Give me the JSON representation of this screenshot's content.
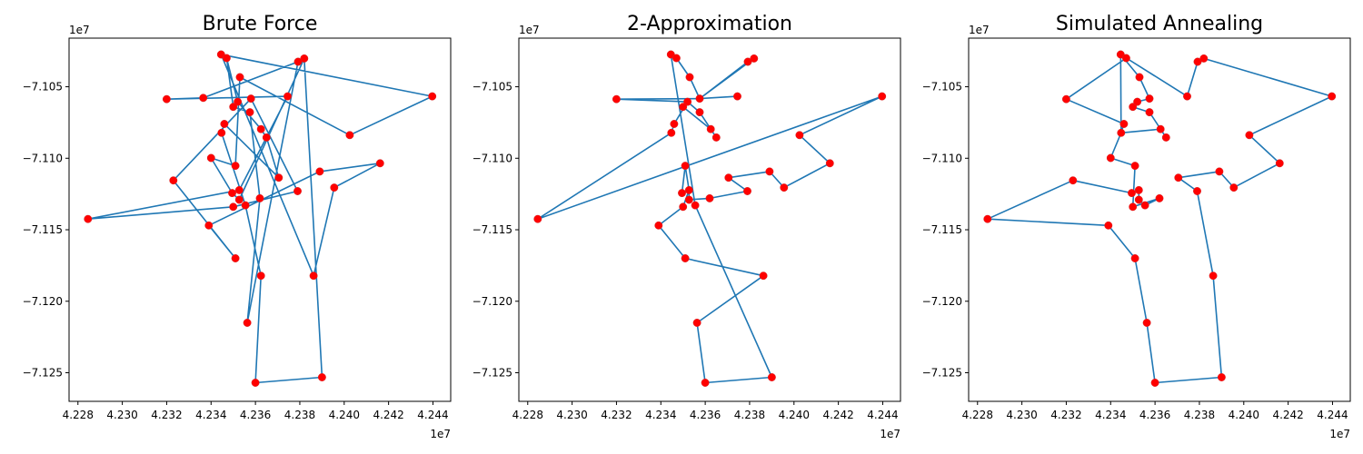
{
  "chart_data": [
    {
      "type": "line",
      "title": "Brute Force",
      "x_offset_label": "1e7",
      "y_offset_label": "1e7",
      "x_tick_labels": [
        "4.228",
        "4.230",
        "4.232",
        "4.234",
        "4.236",
        "4.238",
        "4.240",
        "4.242",
        "4.244"
      ],
      "y_tick_labels": [
        "−7.105",
        "−7.110",
        "−7.115",
        "−7.120",
        "−7.125"
      ],
      "x_ticks": [
        4.228,
        4.23,
        4.232,
        4.234,
        4.236,
        4.238,
        4.24,
        4.242,
        4.244
      ],
      "y_ticks": [
        -7.105,
        -7.11,
        -7.115,
        -7.12,
        -7.125
      ],
      "xlim": [
        4.2276,
        4.2448
      ],
      "ylim": [
        -7.127,
        -7.1016
      ],
      "route_color": "#1f77b4",
      "point_color": "#ff0000",
      "route": [
        [
          4.23445,
          -7.10274
        ],
        [
          4.24397,
          -7.10567
        ],
        [
          4.24025,
          -7.10838
        ],
        [
          4.2353,
          -7.10433
        ],
        [
          4.2351,
          -7.11053
        ],
        [
          4.234,
          -7.10998
        ],
        [
          4.23495,
          -7.11243
        ],
        [
          4.23527,
          -7.1129
        ],
        [
          4.2382,
          -7.10302
        ],
        [
          4.239,
          -7.12532
        ],
        [
          4.236,
          -7.1257
        ],
        [
          4.23625,
          -7.11822
        ],
        [
          4.23555,
          -7.11329
        ],
        [
          4.23447,
          -7.10822
        ],
        [
          4.2346,
          -7.1076
        ],
        [
          4.23705,
          -7.11136
        ],
        [
          4.2365,
          -7.10855
        ],
        [
          4.23625,
          -7.10796
        ],
        [
          4.2352,
          -7.10605
        ],
        [
          4.2347,
          -7.103
        ],
        [
          4.235,
          -7.10641
        ],
        [
          4.23575,
          -7.10678
        ],
        [
          4.2362,
          -7.1128
        ],
        [
          4.23563,
          -7.12151
        ],
        [
          4.23792,
          -7.10325
        ],
        [
          4.23365,
          -7.10578
        ],
        [
          4.232,
          -7.10587
        ],
        [
          4.23745,
          -7.10567
        ],
        [
          4.23527,
          -7.11223
        ],
        [
          4.22845,
          -7.11425
        ],
        [
          4.235,
          -7.1134
        ],
        [
          4.2379,
          -7.1123
        ],
        [
          4.2358,
          -7.10583
        ],
        [
          4.2323,
          -7.11155
        ],
        [
          4.2351,
          -7.117
        ],
        [
          4.2339,
          -7.1147
        ],
        [
          4.2389,
          -7.11093
        ],
        [
          4.24162,
          -7.11035
        ],
        [
          4.23955,
          -7.11205
        ],
        [
          4.23862,
          -7.11822
        ],
        [
          4.23445,
          -7.10274
        ]
      ]
    },
    {
      "type": "line",
      "title": "2-Approximation",
      "x_offset_label": "1e7",
      "y_offset_label": "1e7",
      "x_tick_labels": [
        "4.228",
        "4.230",
        "4.232",
        "4.234",
        "4.236",
        "4.238",
        "4.240",
        "4.242",
        "4.244"
      ],
      "y_tick_labels": [
        "−7.105",
        "−7.110",
        "−7.115",
        "−7.120",
        "−7.125"
      ],
      "x_ticks": [
        4.228,
        4.23,
        4.232,
        4.234,
        4.236,
        4.238,
        4.24,
        4.242,
        4.244
      ],
      "y_ticks": [
        -7.105,
        -7.11,
        -7.115,
        -7.12,
        -7.125
      ],
      "xlim": [
        4.2276,
        4.2448
      ],
      "ylim": [
        -7.127,
        -7.1016
      ],
      "route_color": "#1f77b4",
      "point_color": "#ff0000",
      "route": [
        [
          4.23445,
          -7.10274
        ],
        [
          4.2347,
          -7.103
        ],
        [
          4.2353,
          -7.10433
        ],
        [
          4.23575,
          -7.10583
        ],
        [
          4.23792,
          -7.10325
        ],
        [
          4.2382,
          -7.10302
        ],
        [
          4.23575,
          -7.10583
        ],
        [
          4.23745,
          -7.10567
        ],
        [
          4.23575,
          -7.10583
        ],
        [
          4.232,
          -7.10587
        ],
        [
          4.2352,
          -7.10605
        ],
        [
          4.235,
          -7.10641
        ],
        [
          4.23625,
          -7.10796
        ],
        [
          4.2365,
          -7.10855
        ],
        [
          4.23575,
          -7.10678
        ],
        [
          4.2352,
          -7.10605
        ],
        [
          4.2346,
          -7.1076
        ],
        [
          4.23447,
          -7.10822
        ],
        [
          4.22845,
          -7.11425
        ],
        [
          4.24397,
          -7.10567
        ],
        [
          4.24025,
          -7.10838
        ],
        [
          4.24162,
          -7.11035
        ],
        [
          4.23955,
          -7.11205
        ],
        [
          4.2389,
          -7.11093
        ],
        [
          4.23705,
          -7.11136
        ],
        [
          4.2379,
          -7.1123
        ],
        [
          4.2362,
          -7.1128
        ],
        [
          4.23527,
          -7.1129
        ],
        [
          4.23527,
          -7.11223
        ],
        [
          4.23495,
          -7.11243
        ],
        [
          4.2351,
          -7.11053
        ],
        [
          4.23527,
          -7.11223
        ],
        [
          4.235,
          -7.1134
        ],
        [
          4.2339,
          -7.1147
        ],
        [
          4.2351,
          -7.117
        ],
        [
          4.23862,
          -7.11822
        ],
        [
          4.23563,
          -7.12151
        ],
        [
          4.236,
          -7.1257
        ],
        [
          4.239,
          -7.12532
        ],
        [
          4.23555,
          -7.11329
        ],
        [
          4.23445,
          -7.10274
        ]
      ]
    },
    {
      "type": "line",
      "title": "Simulated Annealing",
      "x_offset_label": "1e7",
      "y_offset_label": "1e7",
      "x_tick_labels": [
        "4.228",
        "4.230",
        "4.232",
        "4.234",
        "4.236",
        "4.238",
        "4.240",
        "4.242",
        "4.244"
      ],
      "y_tick_labels": [
        "−7.105",
        "−7.110",
        "−7.115",
        "−7.120",
        "−7.125"
      ],
      "x_ticks": [
        4.228,
        4.23,
        4.232,
        4.234,
        4.236,
        4.238,
        4.24,
        4.242,
        4.244
      ],
      "y_ticks": [
        -7.105,
        -7.11,
        -7.115,
        -7.12,
        -7.125
      ],
      "xlim": [
        4.2276,
        4.2448
      ],
      "ylim": [
        -7.127,
        -7.1016
      ],
      "route_color": "#1f77b4",
      "point_color": "#ff0000",
      "route": [
        [
          4.23445,
          -7.10274
        ],
        [
          4.2347,
          -7.103
        ],
        [
          4.232,
          -7.10587
        ],
        [
          4.2346,
          -7.1076
        ],
        [
          4.23447,
          -7.10822
        ],
        [
          4.23625,
          -7.10796
        ],
        [
          4.2365,
          -7.10855
        ],
        [
          4.23575,
          -7.10678
        ],
        [
          4.235,
          -7.10641
        ],
        [
          4.2352,
          -7.10605
        ],
        [
          4.23575,
          -7.10583
        ],
        [
          4.2353,
          -7.10433
        ],
        [
          4.23445,
          -7.10274
        ],
        [
          4.23745,
          -7.10567
        ],
        [
          4.23792,
          -7.10325
        ],
        [
          4.2382,
          -7.10302
        ],
        [
          4.24397,
          -7.10567
        ],
        [
          4.24025,
          -7.10838
        ],
        [
          4.24162,
          -7.11035
        ],
        [
          4.23955,
          -7.11205
        ],
        [
          4.2389,
          -7.11093
        ],
        [
          4.23705,
          -7.11136
        ],
        [
          4.2379,
          -7.1123
        ],
        [
          4.23862,
          -7.11822
        ],
        [
          4.239,
          -7.12532
        ],
        [
          4.236,
          -7.1257
        ],
        [
          4.23563,
          -7.12151
        ],
        [
          4.2351,
          -7.117
        ],
        [
          4.2339,
          -7.1147
        ],
        [
          4.22845,
          -7.11425
        ],
        [
          4.2323,
          -7.11155
        ],
        [
          4.23495,
          -7.11243
        ],
        [
          4.23527,
          -7.11223
        ],
        [
          4.23527,
          -7.1129
        ],
        [
          4.23555,
          -7.11329
        ],
        [
          4.2362,
          -7.1128
        ],
        [
          4.235,
          -7.1134
        ],
        [
          4.2351,
          -7.11053
        ],
        [
          4.234,
          -7.10998
        ],
        [
          4.23447,
          -7.10822
        ],
        [
          4.23445,
          -7.10274
        ]
      ]
    }
  ]
}
